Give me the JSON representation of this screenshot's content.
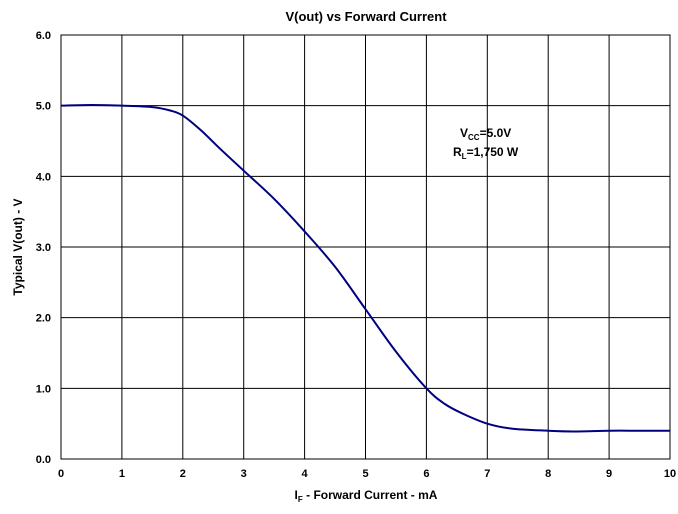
{
  "chart_data": {
    "type": "line",
    "title": "V(out) vs Forward Current",
    "xlabel": {
      "main": "I",
      "sub": "F",
      "rest": " - Forward Current - mA"
    },
    "ylabel": "Typical V(out) - V",
    "xlim": [
      0,
      10
    ],
    "ylim": [
      0,
      6
    ],
    "x_ticks": [
      "0",
      "1",
      "2",
      "3",
      "4",
      "5",
      "6",
      "7",
      "8",
      "9",
      "10"
    ],
    "y_ticks": [
      "0.0",
      "1.0",
      "2.0",
      "3.0",
      "4.0",
      "5.0",
      "6.0"
    ],
    "grid": true,
    "annotations": [
      {
        "main": "V",
        "sub": "CC",
        "rest": "=5.0V"
      },
      {
        "main": "R",
        "sub": "L",
        "rest": "=1,750 W"
      }
    ],
    "series": [
      {
        "color": "#000080",
        "x": [
          0,
          0.5,
          1.0,
          1.5,
          1.8,
          2.0,
          2.3,
          2.6,
          3.0,
          3.5,
          4.0,
          4.5,
          5.0,
          5.5,
          6.0,
          6.3,
          6.6,
          7.0,
          7.4,
          8.0,
          8.4,
          9.0,
          9.5,
          10.0
        ],
        "y": [
          5.0,
          5.01,
          5.0,
          4.98,
          4.93,
          4.86,
          4.65,
          4.4,
          4.08,
          3.68,
          3.22,
          2.72,
          2.12,
          1.52,
          1.0,
          0.78,
          0.64,
          0.5,
          0.43,
          0.4,
          0.39,
          0.4,
          0.4,
          0.4
        ]
      }
    ]
  }
}
